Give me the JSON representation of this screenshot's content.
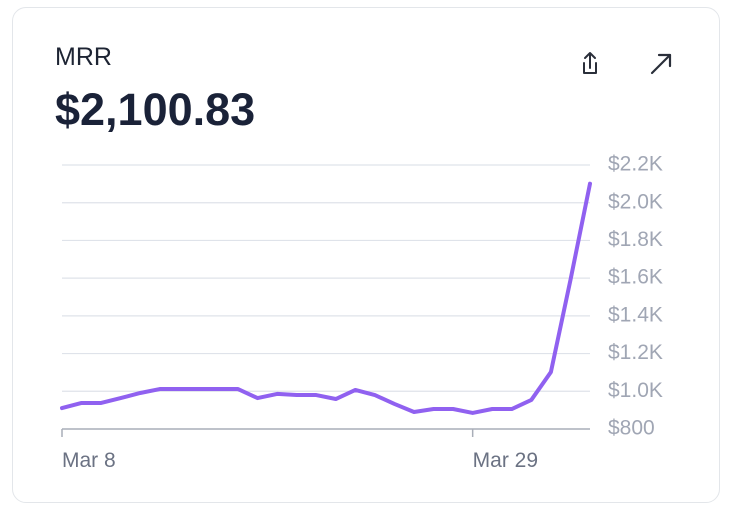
{
  "chart_data": {
    "type": "line",
    "title": "MRR",
    "subtitle": "$2,100.83",
    "categories": [
      "Mar 8",
      null,
      null,
      null,
      null,
      null,
      null,
      null,
      null,
      null,
      null,
      null,
      null,
      null,
      null,
      null,
      null,
      null,
      null,
      null,
      null,
      "Mar 29",
      null,
      null,
      null,
      null,
      null,
      null
    ],
    "series": [
      {
        "name": "MRR",
        "color": "#9061f0",
        "values": [
          911,
          938,
          938,
          964,
          991,
          1012,
          1012,
          1012,
          1012,
          1012,
          964,
          986,
          980,
          980,
          959,
          1007,
          980,
          933,
          890,
          906,
          906,
          885,
          906,
          906,
          954,
          1102,
          1590,
          2100.83
        ]
      }
    ],
    "ylim": [
      800,
      2200
    ],
    "yticks": [
      {
        "value": 800,
        "label": "$800"
      },
      {
        "value": 1000,
        "label": "$1.0K"
      },
      {
        "value": 1200,
        "label": "$1.2K"
      },
      {
        "value": 1400,
        "label": "$1.4K"
      },
      {
        "value": 1600,
        "label": "$1.6K"
      },
      {
        "value": 1800,
        "label": "$1.8K"
      },
      {
        "value": 2000,
        "label": "$2.0K"
      },
      {
        "value": 2200,
        "label": "$2.2K"
      }
    ],
    "grid": true
  }
}
